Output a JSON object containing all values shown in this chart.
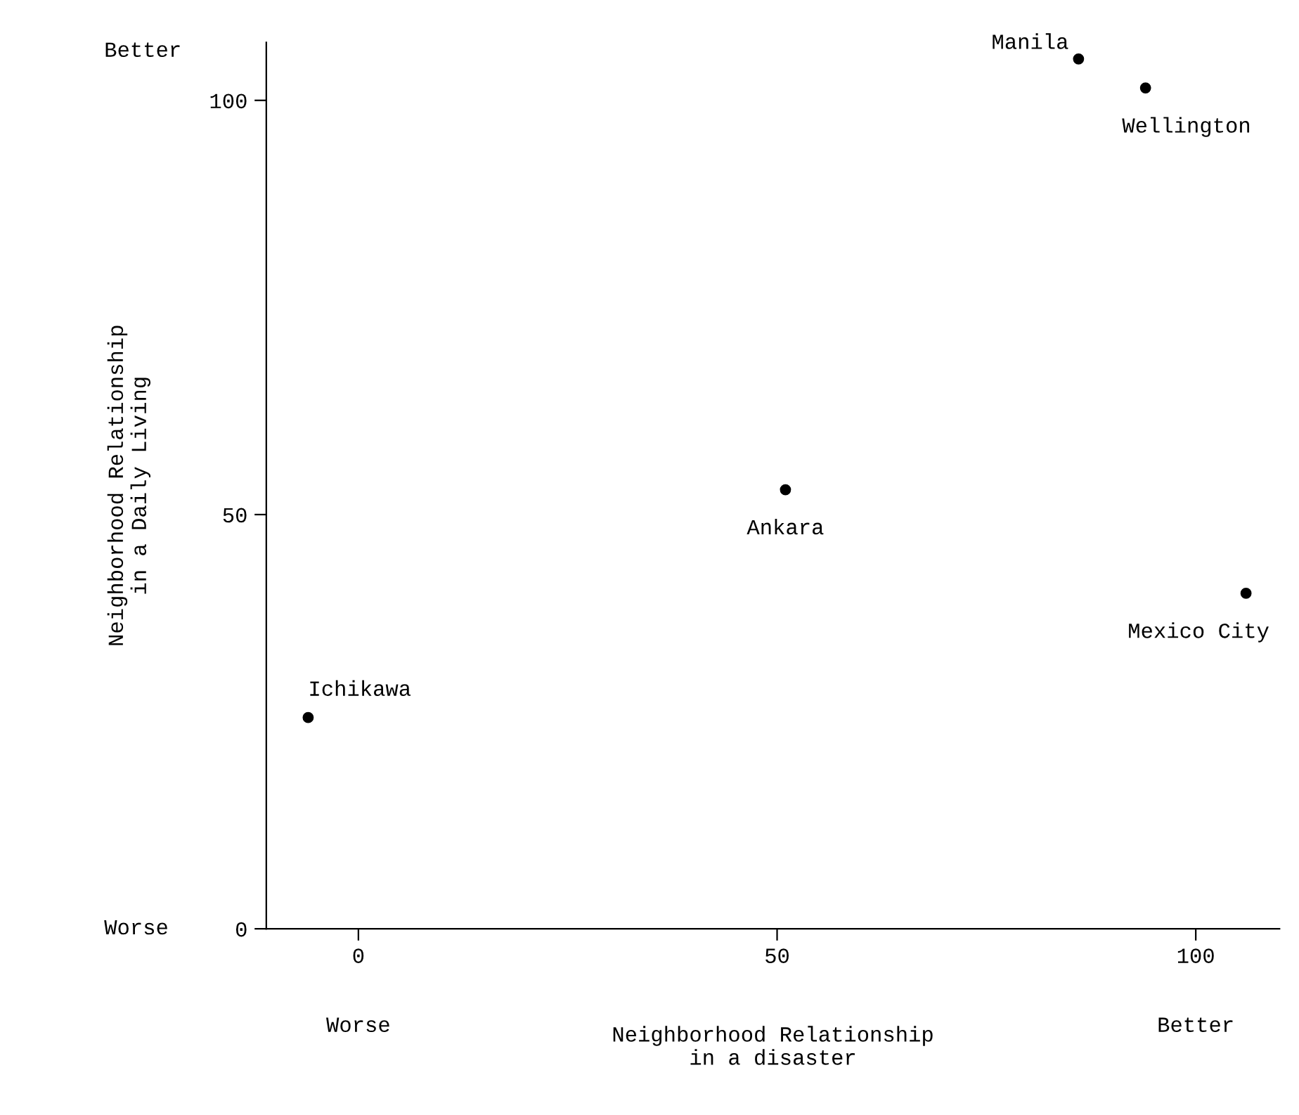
{
  "chart_data": {
    "type": "scatter",
    "xlabel": "Neighborhood Relationship\nin a disaster",
    "ylabel": "Neighborhood Relationship\nin a Daily Living",
    "x": [
      -6,
      51,
      86,
      94,
      106
    ],
    "values": [
      25.5,
      53,
      105,
      101.5,
      40.5
    ],
    "color": "#000000",
    "marker": "circle",
    "xlim": [
      -11,
      110
    ],
    "ylim": [
      0,
      107
    ],
    "xticks": [
      0,
      50,
      100
    ],
    "yticks": [
      0,
      50,
      100
    ],
    "grid": false,
    "annotations": [
      {
        "text": "Ichikawa",
        "x": -6,
        "y": 25.5
      },
      {
        "text": "Ankara",
        "x": 51,
        "y": 53
      },
      {
        "text": "Manila",
        "x": 86,
        "y": 105
      },
      {
        "text": "Wellington",
        "x": 94,
        "y": 101.5
      },
      {
        "text": "Mexico City",
        "x": 106,
        "y": 40.5
      },
      "Worse",
      "Better",
      "Worse",
      "Better"
    ]
  }
}
